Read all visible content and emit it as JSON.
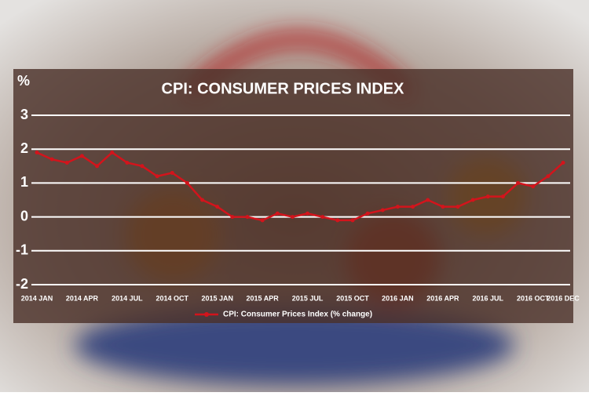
{
  "chart_data": {
    "type": "line",
    "title": "CPI: CONSUMER PRICES INDEX",
    "y_label": "%",
    "categories": [
      "2014 JAN",
      null,
      null,
      "2014 APR",
      null,
      null,
      "2014 JUL",
      null,
      null,
      "2014 OCT",
      null,
      null,
      "2015 JAN",
      null,
      null,
      "2015 APR",
      null,
      null,
      "2015 JUL",
      null,
      null,
      "2015 OCT",
      null,
      null,
      "2016 JAN",
      null,
      null,
      "2016 APR",
      null,
      null,
      "2016 JUL",
      null,
      null,
      "2016 OCT",
      null,
      "2016 DEC"
    ],
    "series": [
      {
        "name": "CPI: Consumer Prices Index (% change)",
        "color": "#d3141c",
        "values": [
          1.9,
          1.7,
          1.6,
          1.8,
          1.5,
          1.9,
          1.6,
          1.5,
          1.2,
          1.3,
          1.0,
          0.5,
          0.3,
          0.0,
          0.0,
          -0.1,
          0.1,
          0.0,
          0.1,
          0.0,
          -0.1,
          -0.1,
          0.1,
          0.2,
          0.3,
          0.3,
          0.5,
          0.3,
          0.3,
          0.5,
          0.6,
          0.6,
          1.0,
          0.9,
          1.2,
          1.6
        ]
      }
    ],
    "ylim": [
      -2,
      3
    ],
    "yticks": [
      -2,
      -1,
      0,
      1,
      2,
      3
    ],
    "grid": true,
    "legend": "bottom"
  }
}
